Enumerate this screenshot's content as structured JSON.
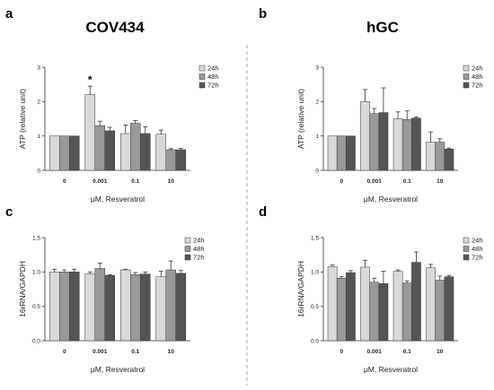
{
  "panels": [
    {
      "letter": "a",
      "title": "COV434"
    },
    {
      "letter": "b",
      "title": "hGC"
    },
    {
      "letter": "c",
      "title": ""
    },
    {
      "letter": "d",
      "title": ""
    }
  ],
  "colors": {
    "24h": "#d9d9d9",
    "48h": "#999999",
    "72h": "#555555",
    "divider": "#aaaaaa"
  },
  "chart_data": [
    {
      "type": "bar",
      "panel": "a",
      "title": "COV434",
      "xlabel": "μM, Resveratrol",
      "ylabel": "ATP (relative unit)",
      "ylim": [
        0,
        3
      ],
      "yticks": [
        "0",
        "1",
        "2",
        "3"
      ],
      "categories": [
        "0",
        "0.001",
        "0.1",
        "10"
      ],
      "legend_position": "top-right",
      "series": [
        {
          "name": "24h",
          "values": [
            1.0,
            2.2,
            1.07,
            1.05
          ],
          "errors": [
            0,
            0.25,
            0.25,
            0.12
          ]
        },
        {
          "name": "48h",
          "values": [
            1.0,
            1.3,
            1.37,
            0.6
          ],
          "errors": [
            0,
            0.13,
            0.08,
            0.03
          ]
        },
        {
          "name": "72h",
          "values": [
            1.0,
            1.15,
            1.07,
            0.6
          ],
          "errors": [
            0,
            0.1,
            0.2,
            0.04
          ]
        }
      ],
      "annotations": [
        {
          "text": "*",
          "category": "0.001",
          "series": "24h"
        }
      ]
    },
    {
      "type": "bar",
      "panel": "b",
      "title": "hGC",
      "xlabel": "μM, Resveratrol",
      "ylabel": "ATP (relative unit)",
      "ylim": [
        0,
        3
      ],
      "yticks": [
        "0",
        "1",
        "2",
        "3"
      ],
      "categories": [
        "0",
        "0.001",
        "0.1",
        "10"
      ],
      "legend_position": "top-right",
      "series": [
        {
          "name": "24h",
          "values": [
            1.0,
            2.0,
            1.5,
            0.82
          ],
          "errors": [
            0,
            0.35,
            0.2,
            0.3
          ]
        },
        {
          "name": "48h",
          "values": [
            1.0,
            1.65,
            1.48,
            0.82
          ],
          "errors": [
            0,
            0.15,
            0.25,
            0.1
          ]
        },
        {
          "name": "72h",
          "values": [
            1.0,
            1.68,
            1.52,
            0.62
          ],
          "errors": [
            0,
            0.72,
            0.03,
            0.03
          ]
        }
      ],
      "annotations": []
    },
    {
      "type": "bar",
      "panel": "c",
      "title": "",
      "xlabel": "μM, Resveratrol",
      "ylabel": "16rRNA/GAPDH",
      "ylim": [
        0,
        1.5
      ],
      "yticks": [
        "0.0",
        "0.5",
        "1.0",
        "1.5"
      ],
      "categories": [
        "0",
        "0.001",
        "0.1",
        "10"
      ],
      "legend_position": "top-right",
      "series": [
        {
          "name": "24h",
          "values": [
            1.0,
            0.97,
            1.03,
            0.93
          ],
          "errors": [
            0.04,
            0.03,
            0.01,
            0.08
          ]
        },
        {
          "name": "48h",
          "values": [
            1.0,
            1.05,
            0.96,
            1.03
          ],
          "errors": [
            0.03,
            0.08,
            0.03,
            0.13
          ]
        },
        {
          "name": "72h",
          "values": [
            1.0,
            0.95,
            0.97,
            0.98
          ],
          "errors": [
            0.04,
            0.01,
            0.03,
            0.04
          ]
        }
      ],
      "annotations": []
    },
    {
      "type": "bar",
      "panel": "d",
      "title": "",
      "xlabel": "μM, Resveratrol",
      "ylabel": "16rRNA/GAPDH",
      "ylim": [
        0,
        1.5
      ],
      "yticks": [
        "0.0",
        "0.5",
        "1.0",
        "1.5"
      ],
      "categories": [
        "0",
        "0.001",
        "0.1",
        "10"
      ],
      "legend_position": "top-right",
      "series": [
        {
          "name": "24h",
          "values": [
            1.08,
            1.07,
            1.01,
            1.06
          ],
          "errors": [
            0.02,
            0.1,
            0.02,
            0.05
          ]
        },
        {
          "name": "48h",
          "values": [
            0.91,
            0.85,
            0.84,
            0.88
          ],
          "errors": [
            0.02,
            0.06,
            0.03,
            0.06
          ]
        },
        {
          "name": "72h",
          "values": [
            0.99,
            0.83,
            1.14,
            0.93
          ],
          "errors": [
            0.03,
            0.18,
            0.15,
            0.02
          ]
        }
      ],
      "annotations": []
    }
  ]
}
